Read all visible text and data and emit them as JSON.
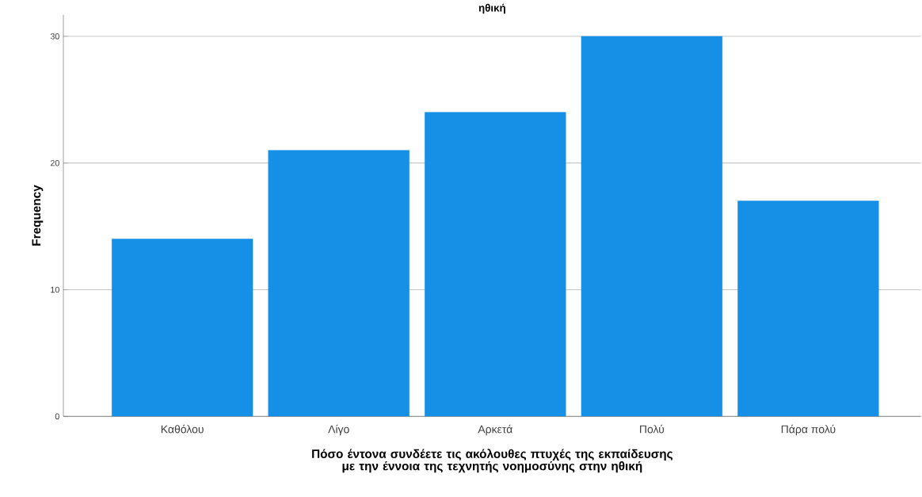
{
  "chart_data": {
    "type": "bar",
    "title": "ηθική",
    "xlabel": "Πόσο έντονα συνδέετε τις ακόλουθες πτυχές της εκπαίδευσης με την έννοια της τεχνητής νοημοσύνης στην ηθική",
    "ylabel": "Frequency",
    "categories": [
      "Καθόλου",
      "Λίγο",
      "Αρκετά",
      "Πολύ",
      "Πάρα πολύ"
    ],
    "values": [
      14,
      21,
      24,
      30,
      17
    ],
    "color": "#1590e6",
    "ylim": [
      0,
      31.7
    ],
    "yticks": [
      0,
      10,
      20,
      30
    ],
    "grid": "y"
  }
}
